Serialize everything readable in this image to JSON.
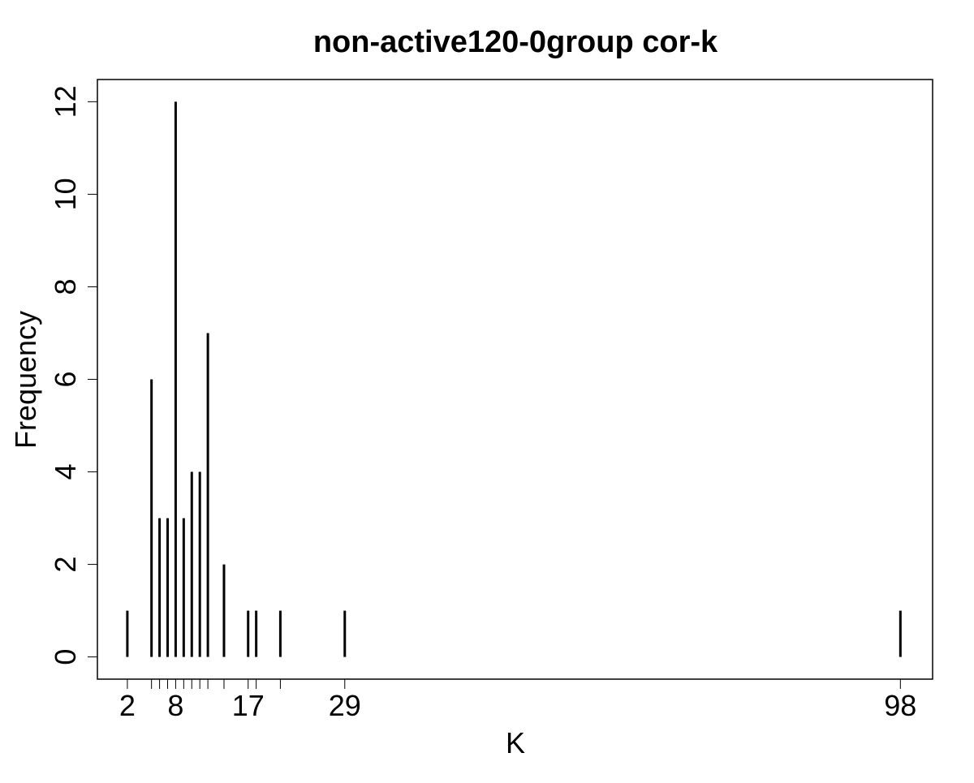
{
  "chart_data": {
    "type": "bar",
    "title": "non-active120-0group cor-k",
    "xlabel": "K",
    "ylabel": "Frequency",
    "x": [
      2,
      5,
      6,
      7,
      8,
      9,
      10,
      11,
      12,
      14,
      17,
      18,
      21,
      29,
      98
    ],
    "values": [
      1,
      6,
      3,
      3,
      12,
      3,
      4,
      4,
      7,
      2,
      1,
      1,
      1,
      1,
      1
    ],
    "x_ticks": [
      2,
      5,
      6,
      7,
      8,
      9,
      10,
      11,
      12,
      14,
      17,
      18,
      21,
      29,
      98
    ],
    "x_tick_labels": [
      {
        "value": 2,
        "label": "2"
      },
      {
        "value": 8,
        "label": "8"
      },
      {
        "value": 17,
        "label": "17"
      },
      {
        "value": 29,
        "label": "29"
      },
      {
        "value": 98,
        "label": "98"
      }
    ],
    "y_ticks": [
      0,
      2,
      4,
      6,
      8,
      10,
      12
    ],
    "xlim": [
      -1.72,
      102
    ],
    "ylim": [
      -0.48,
      12.48
    ],
    "bar_style": "vertical-lines",
    "grid": false,
    "legend": "none",
    "colors": {
      "bars": "#000000",
      "axes": "#000000",
      "background": "#ffffff"
    }
  }
}
